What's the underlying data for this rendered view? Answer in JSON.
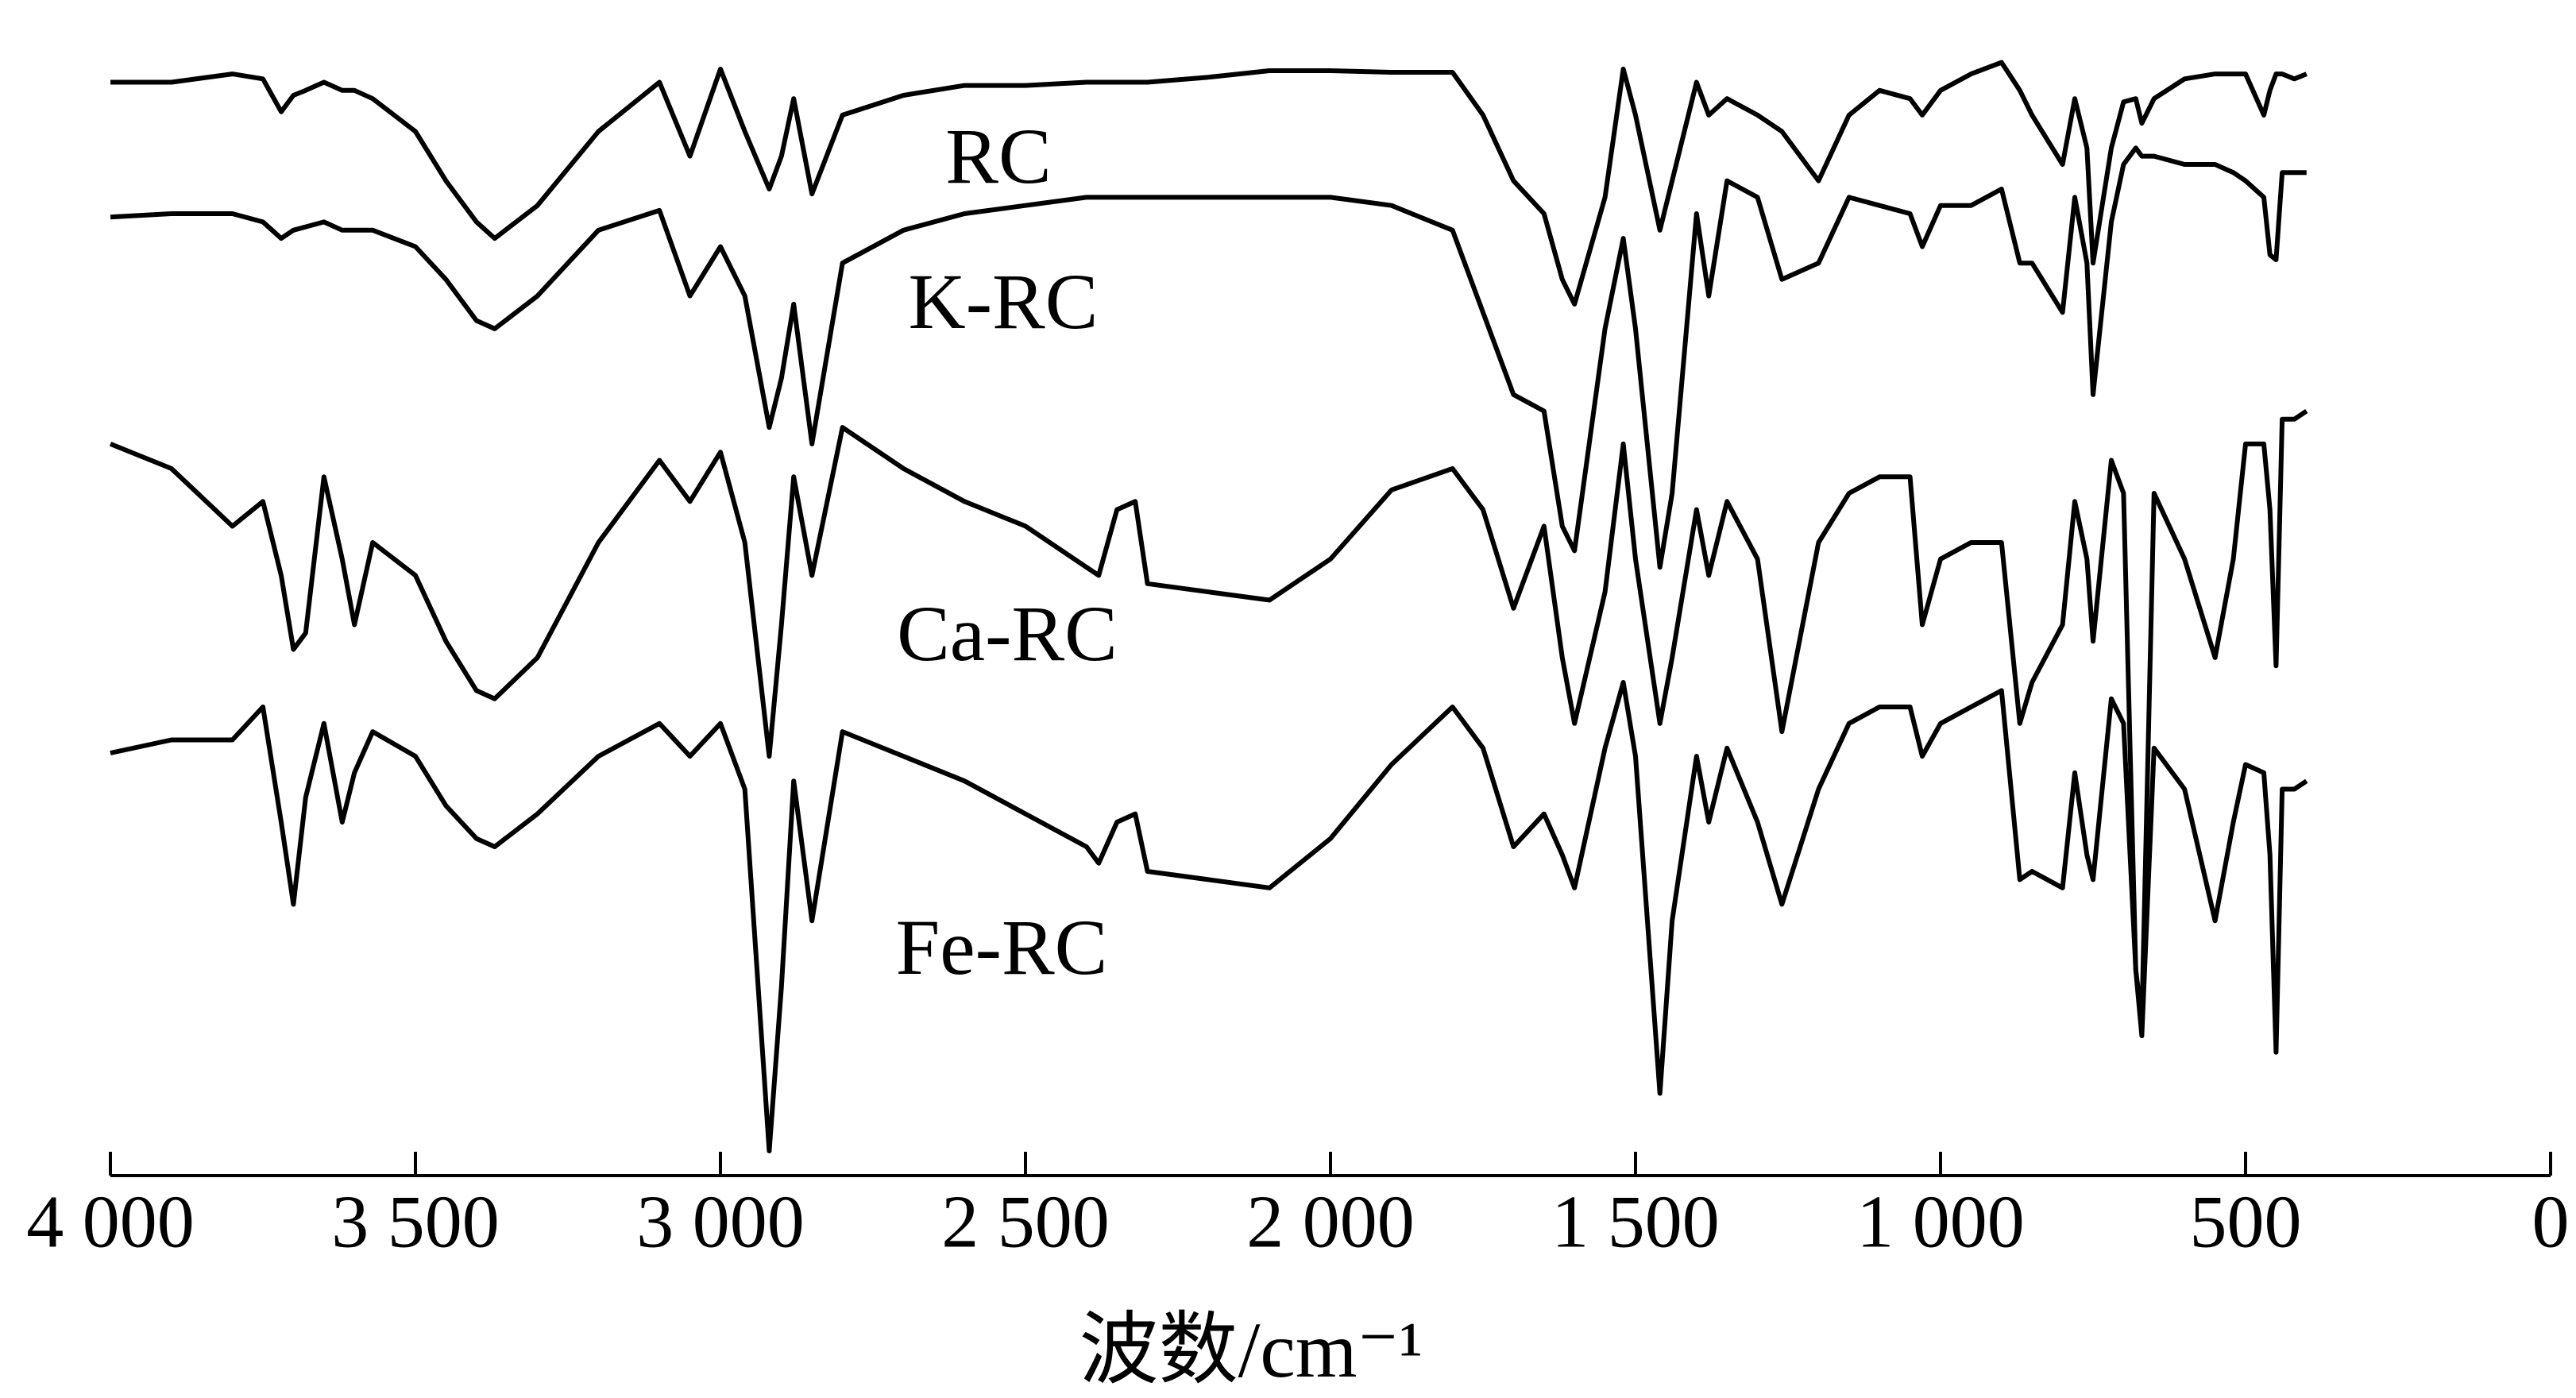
{
  "chart_data": {
    "type": "line",
    "x_label": "波数/cm⁻¹",
    "xlim": [
      4000,
      0
    ],
    "ylim": [
      0,
      700
    ],
    "xticks": [
      {
        "value": 4000,
        "label": "4 000"
      },
      {
        "value": 3500,
        "label": "3 500"
      },
      {
        "value": 3000,
        "label": "3 000"
      },
      {
        "value": 2500,
        "label": "2 500"
      },
      {
        "value": 2000,
        "label": "2 000"
      },
      {
        "value": 1500,
        "label": "1 500"
      },
      {
        "value": 1000,
        "label": "1 000"
      },
      500,
      0
    ],
    "grid": false,
    "x": [
      4000,
      3900,
      3800,
      3750,
      3720,
      3700,
      3680,
      3650,
      3620,
      3600,
      3570,
      3500,
      3450,
      3400,
      3370,
      3300,
      3200,
      3100,
      3050,
      3000,
      2960,
      2920,
      2900,
      2880,
      2850,
      2800,
      2700,
      2600,
      2500,
      2400,
      2380,
      2350,
      2320,
      2300,
      2200,
      2100,
      2000,
      1900,
      1800,
      1750,
      1700,
      1650,
      1620,
      1600,
      1550,
      1520,
      1500,
      1460,
      1440,
      1400,
      1380,
      1350,
      1300,
      1260,
      1200,
      1150,
      1100,
      1050,
      1030,
      1000,
      950,
      900,
      870,
      850,
      800,
      780,
      760,
      750,
      720,
      700,
      680,
      670,
      650,
      600,
      550,
      520,
      500,
      470,
      460,
      450,
      440,
      420,
      400
    ],
    "series": [
      {
        "name": "RC",
        "color": "#000000",
        "values": [
          665,
          665,
          670,
          667,
          647,
          657,
          660,
          665,
          660,
          660,
          655,
          635,
          605,
          580,
          570,
          590,
          635,
          665,
          620,
          673,
          635,
          600,
          620,
          655,
          597,
          645,
          657,
          663,
          663,
          665,
          665,
          665,
          665,
          665,
          668,
          672,
          672,
          671,
          671,
          645,
          605,
          585,
          545,
          530,
          595,
          673,
          645,
          575,
          605,
          665,
          645,
          655,
          645,
          635,
          605,
          645,
          660,
          655,
          645,
          660,
          670,
          677,
          660,
          645,
          615,
          655,
          625,
          555,
          625,
          653,
          655,
          640,
          655,
          667,
          670,
          670,
          670,
          645,
          660,
          670,
          670,
          667,
          670
        ]
      },
      {
        "name": "K-RC",
        "color": "#000000",
        "values": [
          583,
          585,
          585,
          580,
          570,
          575,
          577,
          580,
          575,
          575,
          575,
          565,
          545,
          520,
          515,
          535,
          575,
          587,
          535,
          565,
          535,
          455,
          485,
          530,
          445,
          555,
          575,
          585,
          590,
          595,
          595,
          595,
          595,
          595,
          595,
          595,
          595,
          590,
          575,
          525,
          475,
          465,
          395,
          380,
          515,
          570,
          515,
          370,
          415,
          585,
          535,
          605,
          595,
          545,
          555,
          595,
          590,
          585,
          565,
          590,
          590,
          600,
          555,
          555,
          525,
          595,
          555,
          475,
          580,
          615,
          625,
          620,
          620,
          615,
          615,
          610,
          605,
          595,
          560,
          557,
          610,
          610,
          610
        ]
      },
      {
        "name": "Ca-RC",
        "color": "#000000",
        "values": [
          445,
          430,
          395,
          410,
          365,
          320,
          330,
          425,
          375,
          335,
          385,
          365,
          325,
          295,
          290,
          315,
          385,
          435,
          410,
          440,
          385,
          255,
          335,
          425,
          365,
          455,
          430,
          410,
          395,
          370,
          365,
          405,
          410,
          360,
          355,
          350,
          375,
          417,
          430,
          405,
          345,
          395,
          315,
          275,
          355,
          445,
          375,
          275,
          315,
          405,
          365,
          410,
          375,
          270,
          385,
          415,
          425,
          425,
          335,
          375,
          385,
          385,
          275,
          300,
          335,
          410,
          375,
          325,
          435,
          415,
          125,
          95,
          415,
          375,
          315,
          375,
          445,
          445,
          405,
          310,
          460,
          460,
          465
        ]
      },
      {
        "name": "Fe-RC",
        "color": "#000000",
        "values": [
          257,
          265,
          265,
          285,
          215,
          165,
          230,
          275,
          215,
          245,
          270,
          255,
          225,
          205,
          200,
          220,
          255,
          275,
          255,
          275,
          235,
          15,
          115,
          240,
          155,
          270,
          255,
          240,
          220,
          200,
          190,
          215,
          220,
          185,
          180,
          175,
          205,
          250,
          285,
          260,
          200,
          220,
          195,
          175,
          260,
          300,
          255,
          50,
          155,
          255,
          215,
          260,
          215,
          165,
          235,
          275,
          285,
          285,
          255,
          275,
          285,
          295,
          180,
          185,
          175,
          245,
          195,
          180,
          290,
          275,
          125,
          85,
          260,
          235,
          155,
          215,
          250,
          245,
          195,
          75,
          235,
          235,
          240
        ]
      }
    ]
  }
}
